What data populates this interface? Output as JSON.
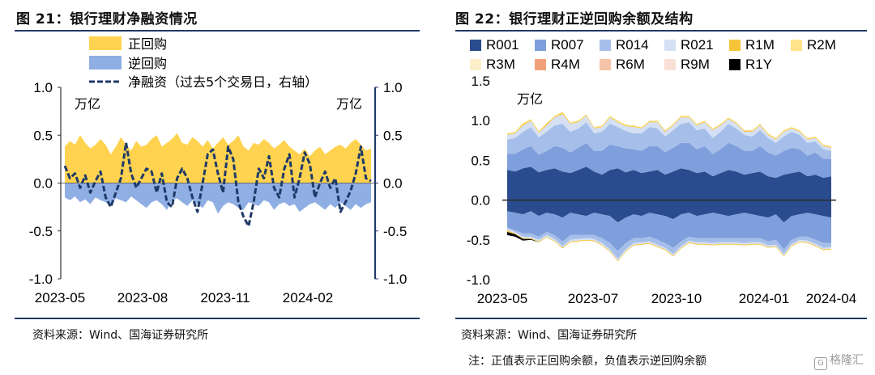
{
  "left": {
    "title": "图 21：银行理财净融资情况",
    "source": "资料来源：Wind、国海证券研究所",
    "chart_data": {
      "type": "area",
      "x_ticks": [
        "2023-05",
        "2023-08",
        "2023-11",
        "2024-02"
      ],
      "y_left_ticks": [
        "1.0",
        "0.5",
        "0.0",
        "-0.5",
        "-1.0"
      ],
      "y_right_ticks": [
        "1.0",
        "0.5",
        "0.0",
        "-0.5",
        "-1.0"
      ],
      "ylim": [
        -1.0,
        1.0
      ],
      "ylabel_left": "万亿",
      "ylabel_right": "万亿",
      "legend": [
        "正回购",
        "逆回购",
        "净融资（过去5个交易日，右轴）"
      ],
      "colors": {
        "repo": "#FFD34F",
        "reverse": "#8FAEE3",
        "net": "#1F3A68"
      },
      "series": [
        {
          "name": "正回购",
          "type": "area",
          "values": [
            0.38,
            0.44,
            0.4,
            0.5,
            0.42,
            0.36,
            0.4,
            0.46,
            0.4,
            0.3,
            0.38,
            0.48,
            0.4,
            0.34,
            0.44,
            0.38,
            0.4,
            0.46,
            0.5,
            0.38,
            0.42,
            0.46,
            0.52,
            0.42,
            0.4,
            0.48,
            0.44,
            0.38,
            0.45,
            0.36,
            0.42,
            0.48,
            0.4,
            0.44,
            0.5,
            0.38,
            0.34,
            0.42,
            0.4,
            0.46,
            0.42,
            0.36,
            0.4,
            0.45,
            0.38,
            0.34,
            0.3,
            0.36,
            0.28,
            0.34,
            0.38,
            0.3,
            0.34,
            0.38,
            0.4,
            0.36,
            0.42,
            0.46,
            0.4,
            0.34,
            0.36
          ]
        },
        {
          "name": "逆回购",
          "type": "area",
          "values": [
            -0.15,
            -0.18,
            -0.14,
            -0.2,
            -0.17,
            -0.22,
            -0.15,
            -0.18,
            -0.2,
            -0.24,
            -0.16,
            -0.18,
            -0.2,
            -0.14,
            -0.18,
            -0.22,
            -0.26,
            -0.2,
            -0.18,
            -0.22,
            -0.28,
            -0.18,
            -0.16,
            -0.2,
            -0.24,
            -0.18,
            -0.22,
            -0.26,
            -0.18,
            -0.2,
            -0.32,
            -0.24,
            -0.2,
            -0.22,
            -0.26,
            -0.28,
            -0.2,
            -0.22,
            -0.24,
            -0.18,
            -0.2,
            -0.28,
            -0.22,
            -0.2,
            -0.24,
            -0.22,
            -0.3,
            -0.26,
            -0.22,
            -0.2,
            -0.24,
            -0.28,
            -0.22,
            -0.26,
            -0.2,
            -0.24,
            -0.28,
            -0.22,
            -0.26,
            -0.22,
            -0.2
          ]
        },
        {
          "name": "净融资（过去5个交易日，右轴）",
          "type": "line",
          "axis": "right",
          "values": [
            0.18,
            0.05,
            0.1,
            -0.05,
            0.08,
            -0.1,
            0.02,
            0.12,
            -0.15,
            -0.25,
            -0.1,
            0.05,
            0.42,
            0.1,
            -0.05,
            0.05,
            0.15,
            0.12,
            -0.1,
            0.1,
            -0.2,
            -0.25,
            0.05,
            0.15,
            0.05,
            -0.15,
            -0.3,
            0.0,
            0.3,
            0.35,
            0.1,
            -0.1,
            0.38,
            0.25,
            -0.2,
            -0.35,
            -0.45,
            -0.2,
            0.15,
            0.05,
            0.28,
            -0.05,
            -0.15,
            0.15,
            0.3,
            -0.15,
            0.05,
            0.32,
            0.2,
            -0.15,
            0.0,
            0.12,
            -0.05,
            0.05,
            -0.3,
            -0.2,
            -0.08,
            0.1,
            0.38,
            0.05,
            0.02
          ]
        }
      ]
    }
  },
  "right": {
    "title": "图 22：银行理财正逆回购余额及结构",
    "source": "资料来源：Wind、国海证券研究所",
    "note": "注：正值表示正回购余额，负值表示逆回购余额",
    "watermark": "格隆汇",
    "chart_data": {
      "type": "area",
      "x_ticks": [
        "2023-05",
        "2023-07",
        "2023-10",
        "2024-01",
        "2024-04"
      ],
      "y_ticks": [
        "1.5",
        "1.0",
        "0.5",
        "0.0",
        "-0.5",
        "-1.0"
      ],
      "ylim": [
        -1.0,
        1.5
      ],
      "ylabel": "万亿",
      "legend": [
        "R001",
        "R007",
        "R014",
        "R021",
        "R1M",
        "R2M",
        "R3M",
        "R4M",
        "R6M",
        "R9M",
        "R1Y"
      ],
      "colors": {
        "R001": "#2A4C8F",
        "R007": "#7F9FDC",
        "R014": "#A6BFEA",
        "R021": "#D5E0F4",
        "R1M": "#F7C53A",
        "R2M": "#FFE38A",
        "R3M": "#FCEFC9",
        "R4M": "#F2A27B",
        "R6M": "#F6C4A6",
        "R9M": "#F9E0D6",
        "R1Y": "#000000"
      },
      "positive": {
        "R001": [
          0.38,
          0.36,
          0.4,
          0.42,
          0.35,
          0.38,
          0.4,
          0.36,
          0.34,
          0.38,
          0.42,
          0.36,
          0.32,
          0.38,
          0.4,
          0.35,
          0.38,
          0.34,
          0.36,
          0.38,
          0.32,
          0.36,
          0.4,
          0.38,
          0.34,
          0.36,
          0.3,
          0.34,
          0.38,
          0.36,
          0.32,
          0.34,
          0.36,
          0.3,
          0.28,
          0.32,
          0.34,
          0.36,
          0.3,
          0.32,
          0.28,
          0.3
        ],
        "R007": [
          0.2,
          0.22,
          0.24,
          0.26,
          0.22,
          0.24,
          0.28,
          0.3,
          0.26,
          0.28,
          0.3,
          0.26,
          0.3,
          0.32,
          0.28,
          0.3,
          0.26,
          0.28,
          0.32,
          0.3,
          0.28,
          0.3,
          0.32,
          0.34,
          0.3,
          0.32,
          0.28,
          0.3,
          0.34,
          0.32,
          0.3,
          0.28,
          0.32,
          0.3,
          0.28,
          0.3,
          0.32,
          0.28,
          0.26,
          0.28,
          0.24,
          0.22
        ],
        "R014": [
          0.18,
          0.2,
          0.22,
          0.24,
          0.22,
          0.24,
          0.26,
          0.3,
          0.26,
          0.24,
          0.26,
          0.22,
          0.24,
          0.26,
          0.24,
          0.22,
          0.2,
          0.22,
          0.24,
          0.22,
          0.2,
          0.22,
          0.24,
          0.26,
          0.24,
          0.22,
          0.2,
          0.22,
          0.24,
          0.22,
          0.2,
          0.18,
          0.2,
          0.18,
          0.16,
          0.18,
          0.2,
          0.18,
          0.16,
          0.14,
          0.12,
          0.1
        ],
        "R021": [
          0.06,
          0.06,
          0.08,
          0.08,
          0.06,
          0.08,
          0.1,
          0.12,
          0.1,
          0.08,
          0.08,
          0.06,
          0.06,
          0.08,
          0.06,
          0.06,
          0.08,
          0.06,
          0.06,
          0.08,
          0.06,
          0.06,
          0.08,
          0.06,
          0.06,
          0.08,
          0.1,
          0.08,
          0.06,
          0.06,
          0.04,
          0.06,
          0.06,
          0.04,
          0.04,
          0.06,
          0.04,
          0.04,
          0.04,
          0.04,
          0.04,
          0.04
        ],
        "R1M": [
          0.01,
          0.01,
          0.02,
          0.01,
          0.01,
          0.02,
          0.01,
          0.02,
          0.01,
          0.01,
          0.01,
          0.01,
          0.01,
          0.01,
          0.01,
          0.01,
          0.01,
          0.01,
          0.01,
          0.01,
          0.01,
          0.01,
          0.01,
          0.01,
          0.01,
          0.01,
          0.01,
          0.01,
          0.01,
          0.01,
          0.01,
          0.01,
          0.01,
          0.01,
          0.01,
          0.01,
          0.01,
          0.01,
          0.01,
          0.01,
          0.01,
          0.01
        ],
        "R2M": [
          0.01,
          0.01,
          0.01,
          0.01,
          0.01,
          0.01,
          0.01,
          0.01,
          0.01,
          0.01,
          0.01,
          0.01,
          0.01,
          0.01,
          0.01,
          0.01,
          0.01,
          0.01,
          0.01,
          0.01,
          0.01,
          0.01,
          0.01,
          0.01,
          0.01,
          0.01,
          0.01,
          0.01,
          0.01,
          0.01,
          0.01,
          0.01,
          0.01,
          0.01,
          0.01,
          0.01,
          0.01,
          0.01,
          0.01,
          0.01,
          0.01,
          0.01
        ]
      },
      "negative": {
        "R001": [
          -0.14,
          -0.16,
          -0.18,
          -0.14,
          -0.2,
          -0.16,
          -0.18,
          -0.22,
          -0.16,
          -0.18,
          -0.2,
          -0.16,
          -0.18,
          -0.2,
          -0.28,
          -0.22,
          -0.18,
          -0.2,
          -0.16,
          -0.18,
          -0.2,
          -0.24,
          -0.18,
          -0.16,
          -0.2,
          -0.18,
          -0.16,
          -0.18,
          -0.2,
          -0.18,
          -0.16,
          -0.18,
          -0.2,
          -0.22,
          -0.18,
          -0.28,
          -0.2,
          -0.18,
          -0.16,
          -0.18,
          -0.2,
          -0.22
        ],
        "R007": [
          -0.2,
          -0.22,
          -0.24,
          -0.28,
          -0.26,
          -0.24,
          -0.26,
          -0.3,
          -0.28,
          -0.26,
          -0.24,
          -0.28,
          -0.3,
          -0.34,
          -0.36,
          -0.32,
          -0.3,
          -0.28,
          -0.3,
          -0.32,
          -0.34,
          -0.36,
          -0.34,
          -0.3,
          -0.28,
          -0.3,
          -0.32,
          -0.3,
          -0.28,
          -0.3,
          -0.32,
          -0.3,
          -0.28,
          -0.3,
          -0.32,
          -0.34,
          -0.3,
          -0.28,
          -0.3,
          -0.32,
          -0.34,
          -0.32
        ],
        "R014": [
          -0.02,
          -0.02,
          -0.04,
          -0.04,
          -0.04,
          -0.04,
          -0.05,
          -0.06,
          -0.06,
          -0.05,
          -0.04,
          -0.05,
          -0.06,
          -0.08,
          -0.1,
          -0.08,
          -0.06,
          -0.05,
          -0.06,
          -0.06,
          -0.06,
          -0.08,
          -0.06,
          -0.05,
          -0.05,
          -0.05,
          -0.06,
          -0.05,
          -0.05,
          -0.05,
          -0.06,
          -0.05,
          -0.05,
          -0.05,
          -0.06,
          -0.06,
          -0.05,
          -0.04,
          -0.05,
          -0.05,
          -0.06,
          -0.05
        ],
        "R021": [
          -0.02,
          -0.02,
          -0.02,
          -0.02,
          -0.02,
          -0.02,
          -0.02,
          -0.02,
          -0.02,
          -0.02,
          -0.02,
          -0.02,
          -0.02,
          -0.02,
          -0.02,
          -0.02,
          -0.02,
          -0.02,
          -0.02,
          -0.02,
          -0.02,
          -0.02,
          -0.02,
          -0.02,
          -0.02,
          -0.02,
          -0.02,
          -0.02,
          -0.02,
          -0.02,
          -0.02,
          -0.02,
          -0.02,
          -0.02,
          -0.02,
          -0.02,
          -0.02,
          -0.02,
          -0.02,
          -0.02,
          -0.02,
          -0.02
        ],
        "R1M": [
          -0.02,
          -0.01,
          -0.01,
          -0.01,
          -0.01,
          -0.01,
          -0.01,
          -0.01,
          -0.01,
          -0.01,
          -0.01,
          -0.01,
          -0.01,
          -0.01,
          -0.01,
          -0.01,
          -0.01,
          -0.01,
          -0.01,
          -0.01,
          -0.01,
          -0.01,
          -0.01,
          -0.01,
          -0.01,
          -0.01,
          -0.01,
          -0.01,
          -0.01,
          -0.01,
          -0.01,
          -0.01,
          -0.01,
          -0.01,
          -0.01,
          -0.01,
          -0.01,
          -0.01,
          -0.01,
          -0.01,
          -0.01,
          -0.01
        ],
        "R1Y": [
          -0.04,
          -0.03,
          -0.02,
          -0.01,
          0.0,
          0.0,
          0.0,
          0.0,
          0.0,
          0.0,
          0.0,
          0.0,
          0.0,
          0.0,
          0.0,
          0.0,
          0.0,
          0.0,
          0.0,
          0.0,
          0.0,
          0.0,
          0.0,
          0.0,
          0.0,
          0.0,
          0.0,
          0.0,
          0.0,
          0.0,
          0.0,
          0.0,
          0.0,
          0.0,
          0.0,
          0.0,
          0.0,
          0.0,
          0.0,
          0.0,
          0.0,
          0.0
        ]
      }
    }
  }
}
